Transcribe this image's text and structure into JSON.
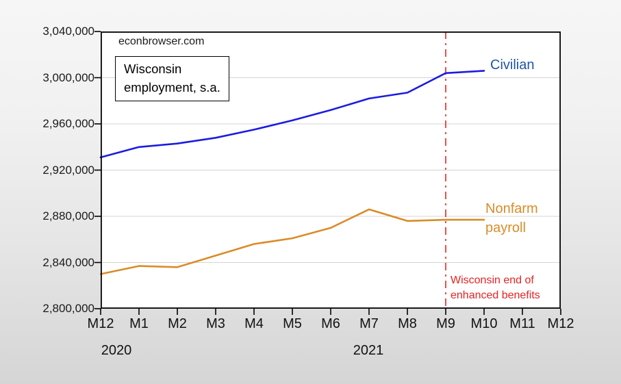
{
  "watermark": "econbrowser.com",
  "title_box": {
    "line1": "Wisconsin",
    "line2": "employment, s.a."
  },
  "labels": {
    "civilian": "Civilian",
    "nonfarm_line1": "Nonfarm",
    "nonfarm_line2": "payroll",
    "annotation_line1": "Wisconsin end of",
    "annotation_line2": "enhanced benefits",
    "year_left": "2020",
    "year_right": "2021"
  },
  "colors": {
    "civilian_line": "#1C1CE0",
    "civilian_label": "#1F55A8",
    "nonfarm_line": "#D98C28",
    "nonfarm_label": "#D98C28",
    "vline_red": "#E62222",
    "annotation_red": "#E62222",
    "gridline": "#D4D4D4",
    "axis": "#000000",
    "plot_background": "#FFFFFF"
  },
  "chart_data": {
    "type": "line",
    "title": "Wisconsin employment, s.a.",
    "watermark": "econbrowser.com",
    "x_tick_labels": [
      "M12",
      "M1",
      "M2",
      "M3",
      "M4",
      "M5",
      "M6",
      "M7",
      "M8",
      "M9",
      "M10",
      "M11",
      "M12"
    ],
    "x_year_labels": [
      {
        "label": "2020",
        "under": "M12 (first)"
      },
      {
        "label": "2021",
        "under": "M7"
      }
    ],
    "ylim": [
      2800000,
      3040000
    ],
    "ytick_step": 40000,
    "y_tick_labels": [
      "3,040,000",
      "3,000,000",
      "2,960,000",
      "2,920,000",
      "2,880,000",
      "2,840,000",
      "2,800,000"
    ],
    "grid": "horizontal only",
    "series": [
      {
        "name": "Civilian",
        "color": "#1C1CE0",
        "x": [
          "M12",
          "M1",
          "M2",
          "M3",
          "M4",
          "M5",
          "M6",
          "M7",
          "M8",
          "M9",
          "M10"
        ],
        "values": [
          2931000,
          2940000,
          2943000,
          2948000,
          2955000,
          2963000,
          2972000,
          2982000,
          2987000,
          3004000,
          3006000
        ]
      },
      {
        "name": "Nonfarm payroll",
        "color": "#D98C28",
        "x": [
          "M12",
          "M1",
          "M2",
          "M3",
          "M4",
          "M5",
          "M6",
          "M7",
          "M8",
          "M9",
          "M10"
        ],
        "values": [
          2830000,
          2837000,
          2836000,
          2846000,
          2856000,
          2861000,
          2870000,
          2886000,
          2876000,
          2877000,
          2877000
        ]
      }
    ],
    "vline": {
      "at_x": "M9",
      "style": "dash-dot",
      "color": "#E62222",
      "label": "Wisconsin end of enhanced benefits"
    },
    "legend_position": "inline labels at right end of lines"
  }
}
